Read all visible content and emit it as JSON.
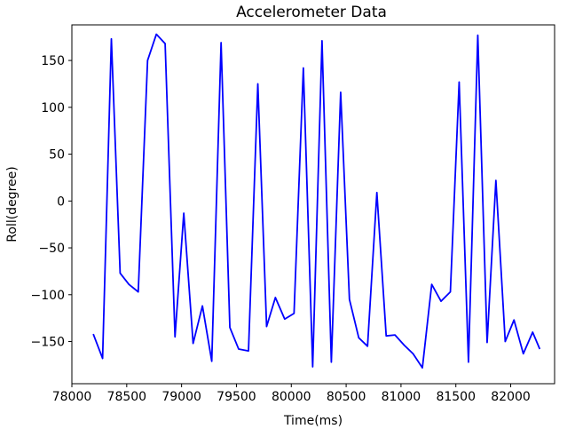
{
  "chart_data": {
    "type": "line",
    "title": "Accelerometer Data",
    "xlabel": "Time(ms)",
    "ylabel": "Roll(degree)",
    "xlim": [
      78000,
      82400
    ],
    "ylim": [
      -195,
      188
    ],
    "xticks": [
      78000,
      78500,
      79000,
      79500,
      80000,
      80500,
      81000,
      81500,
      82000
    ],
    "yticks": [
      -150,
      -100,
      -50,
      0,
      50,
      100,
      150
    ],
    "grid": false,
    "series": [
      {
        "color": "#0000ff",
        "x": [
          78195,
          78280,
          78360,
          78440,
          78520,
          78605,
          78690,
          78770,
          78850,
          78940,
          79020,
          79105,
          79190,
          79275,
          79360,
          79440,
          79520,
          79610,
          79695,
          79775,
          79855,
          79940,
          80025,
          80110,
          80195,
          80280,
          80365,
          80450,
          80530,
          80615,
          80695,
          80780,
          80865,
          80945,
          81030,
          81110,
          81195,
          81280,
          81365,
          81450,
          81530,
          81615,
          81700,
          81785,
          81865,
          81950,
          82030,
          82115,
          82200,
          82265
        ],
        "y": [
          -142,
          -168,
          173,
          -77,
          -89,
          -97,
          150,
          178,
          168,
          -145,
          -13,
          -152,
          -112,
          -171,
          169,
          -135,
          -158,
          -160,
          125,
          -134,
          -103,
          -126,
          -120,
          142,
          -177,
          171,
          -172,
          116,
          -105,
          -146,
          -155,
          9,
          -144,
          -143,
          -154,
          -163,
          -178,
          -89,
          -107,
          -97,
          127,
          -172,
          177,
          -151,
          22,
          -150,
          -127,
          -163,
          -140,
          -158
        ]
      }
    ]
  }
}
